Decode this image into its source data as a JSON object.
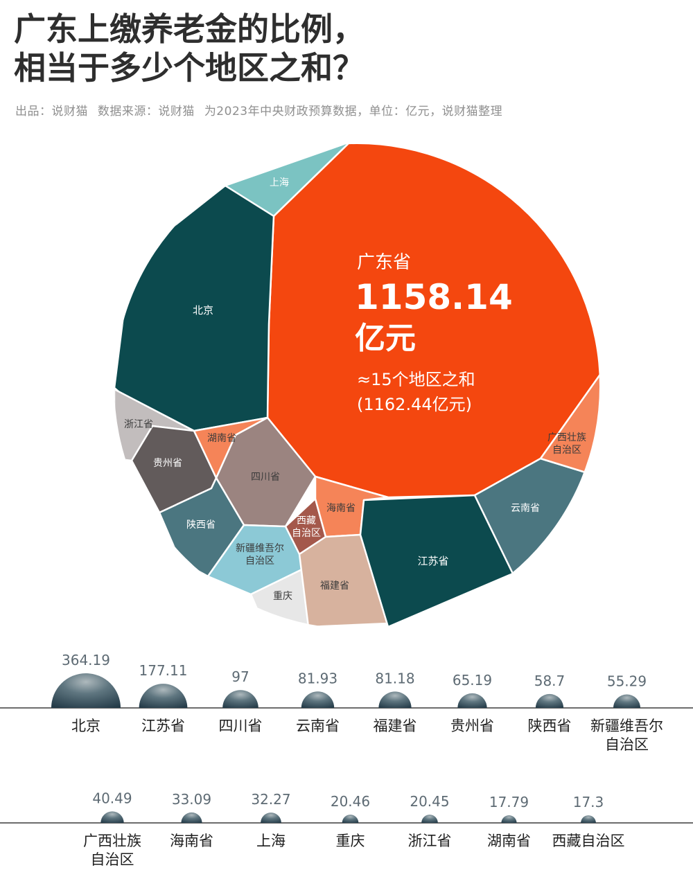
{
  "title_lines": [
    "广东上缴养老金的比例，",
    "相当于多少个地区之和？"
  ],
  "subtitle": {
    "credit": "出品：说财猫",
    "source": "数据来源：说财猫",
    "note": "为2023年中央财政预算数据，单位：亿元，说财猫整理"
  },
  "colors": {
    "guangdong": "#f4470f",
    "dark_teal": "#0c4a4e",
    "slate_teal": "#4b7680",
    "light_teal": "#7bc3c2",
    "sky": "#8cc9d6",
    "orange_light": "#f58458",
    "mauve": "#9b8480",
    "gray_dark": "#625b5b",
    "gray_light": "#c2bdbd",
    "peach": "#d7b29e",
    "brick": "#a4584b",
    "pale": "#e7e7e7"
  },
  "chart_data": [
    {
      "type": "voronoi-treemap",
      "highlight": {
        "name": "广东省",
        "value_text": "1158.14",
        "unit": "亿元",
        "note_line1": "≈15个地区之和",
        "note_line2": "(1162.44亿元)",
        "value": 1158.14,
        "sum_of_15": 1162.44
      },
      "regions": [
        {
          "name": "北京",
          "value": 364.19,
          "color": "#0c4a4e"
        },
        {
          "name": "江苏省",
          "value": 177.11,
          "color": "#0c4a4e"
        },
        {
          "name": "四川省",
          "value": 97,
          "color": "#9b8480"
        },
        {
          "name": "云南省",
          "value": 81.93,
          "color": "#4b7680"
        },
        {
          "name": "福建省",
          "value": 81.18,
          "color": "#d7b29e"
        },
        {
          "name": "贵州省",
          "value": 65.19,
          "color": "#625b5b"
        },
        {
          "name": "陕西省",
          "value": 58.7,
          "color": "#4b7680"
        },
        {
          "name": "新疆维吾尔自治区",
          "value": 55.29,
          "color": "#8cc9d6",
          "label_lines": [
            "新疆维吾尔",
            "自治区"
          ]
        },
        {
          "name": "广西壮族自治区",
          "value": 40.49,
          "color": "#f58458",
          "label_lines": [
            "广西壮族",
            "自治区"
          ]
        },
        {
          "name": "海南省",
          "value": 33.09,
          "color": "#f58458"
        },
        {
          "name": "上海",
          "value": 32.27,
          "color": "#7bc3c2"
        },
        {
          "name": "重庆",
          "value": 20.46,
          "color": "#e7e7e7"
        },
        {
          "name": "浙江省",
          "value": 20.45,
          "color": "#c2bdbd"
        },
        {
          "name": "湖南省",
          "value": 17.79,
          "color": "#f58458"
        },
        {
          "name": "西藏自治区",
          "value": 17.3,
          "color": "#a4584b",
          "label_lines": [
            "西藏",
            "自治区"
          ]
        }
      ]
    },
    {
      "type": "bubble-row",
      "rows": [
        [
          {
            "label_lines": [
              "北京"
            ],
            "value_text": "364.19",
            "value": 364.19
          },
          {
            "label_lines": [
              "江苏省"
            ],
            "value_text": "177.11",
            "value": 177.11
          },
          {
            "label_lines": [
              "四川省"
            ],
            "value_text": "97",
            "value": 97
          },
          {
            "label_lines": [
              "云南省"
            ],
            "value_text": "81.93",
            "value": 81.93
          },
          {
            "label_lines": [
              "福建省"
            ],
            "value_text": "81.18",
            "value": 81.18
          },
          {
            "label_lines": [
              "贵州省"
            ],
            "value_text": "65.19",
            "value": 65.19
          },
          {
            "label_lines": [
              "陕西省"
            ],
            "value_text": "58.7",
            "value": 58.7
          },
          {
            "label_lines": [
              "新疆维吾尔",
              "自治区"
            ],
            "value_text": "55.29",
            "value": 55.29
          }
        ],
        [
          {
            "label_lines": [
              "广西壮族",
              "自治区"
            ],
            "value_text": "40.49",
            "value": 40.49
          },
          {
            "label_lines": [
              "海南省"
            ],
            "value_text": "33.09",
            "value": 33.09
          },
          {
            "label_lines": [
              "上海"
            ],
            "value_text": "32.27",
            "value": 32.27
          },
          {
            "label_lines": [
              "重庆"
            ],
            "value_text": "20.46",
            "value": 20.46
          },
          {
            "label_lines": [
              "浙江省"
            ],
            "value_text": "20.45",
            "value": 20.45
          },
          {
            "label_lines": [
              "湖南省"
            ],
            "value_text": "17.79",
            "value": 17.79
          },
          {
            "label_lines": [
              "西藏自治区"
            ],
            "value_text": "17.3",
            "value": 17.3
          }
        ]
      ]
    }
  ]
}
